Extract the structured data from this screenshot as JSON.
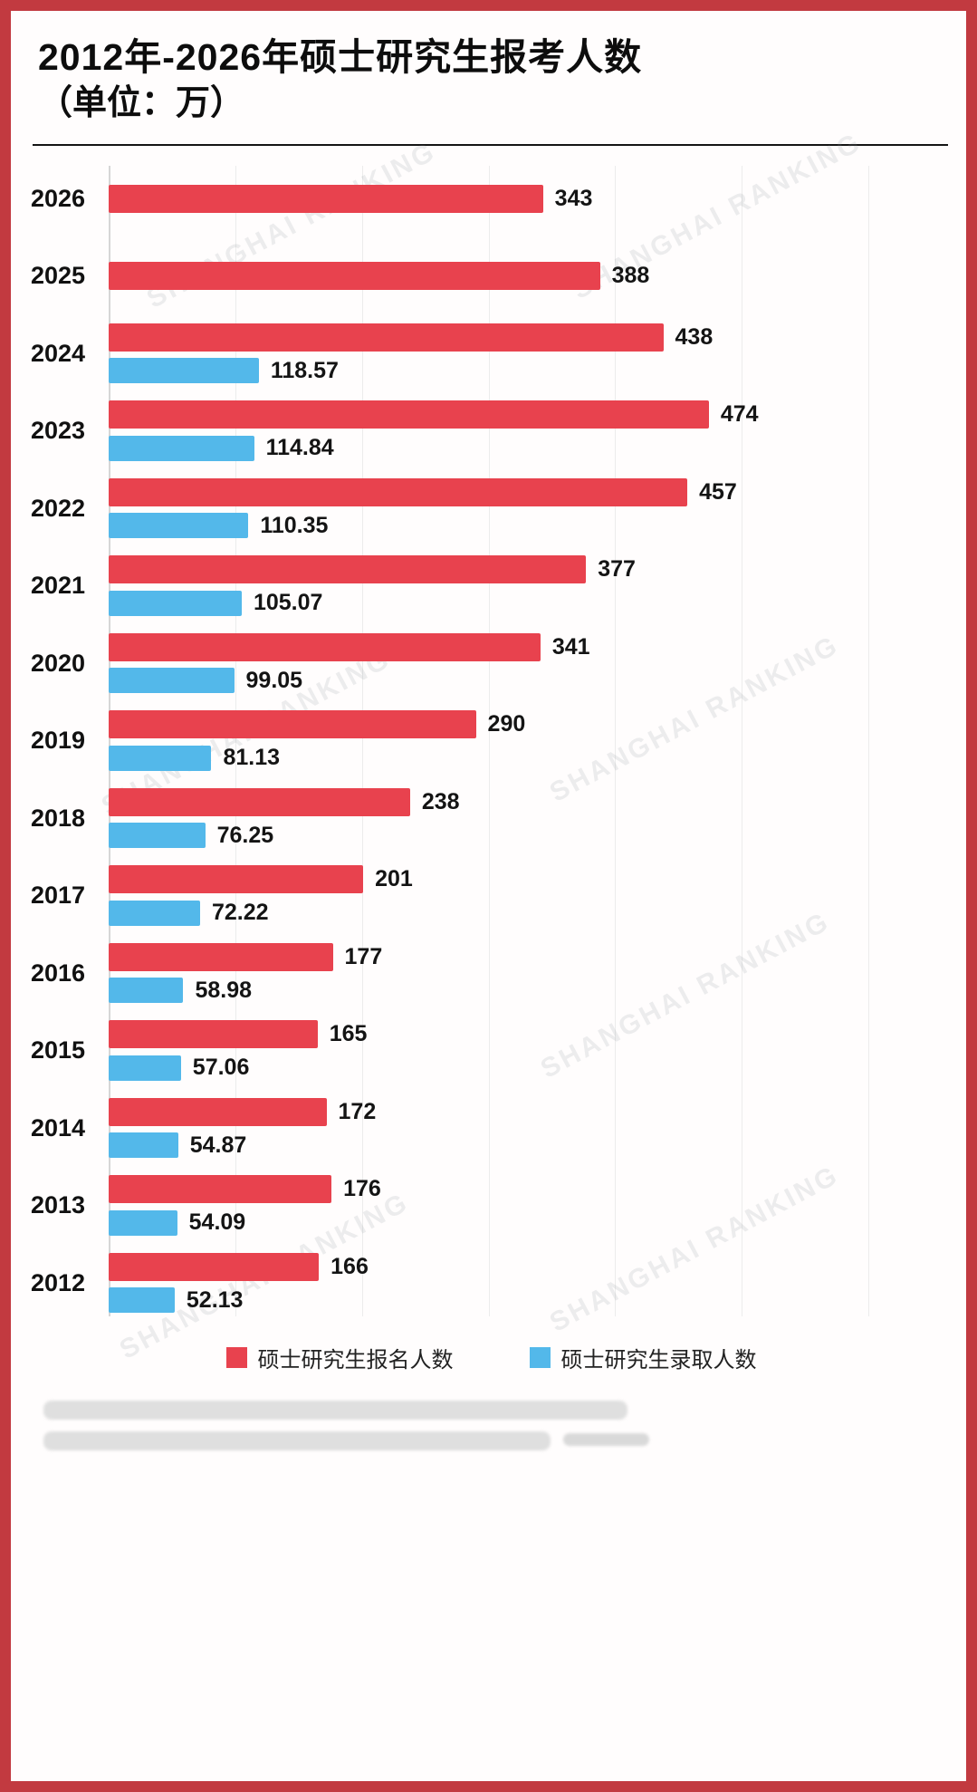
{
  "title": "2012年-2026年硕士研究生报考人数",
  "subtitle": "（单位：万）",
  "watermark": "SHANGHAI RANKING",
  "colors": {
    "applicants": "#e8424e",
    "admitted": "#53b8ea",
    "frame_border": "#c23a40"
  },
  "legend": [
    {
      "label": "硕士研究生报名人数",
      "color": "#e8424e"
    },
    {
      "label": "硕士研究生录取人数",
      "color": "#53b8ea"
    }
  ],
  "chart_data": {
    "type": "bar",
    "orientation": "horizontal",
    "title": "2012年-2026年硕士研究生报考人数（单位：万）",
    "categories": [
      "2026",
      "2025",
      "2024",
      "2023",
      "2022",
      "2021",
      "2020",
      "2019",
      "2018",
      "2017",
      "2016",
      "2015",
      "2014",
      "2013",
      "2012"
    ],
    "series": [
      {
        "name": "硕士研究生报名人数",
        "color": "#e8424e",
        "values": [
          343,
          388,
          438,
          474,
          457,
          377,
          341,
          290,
          238,
          201,
          177,
          165,
          172,
          176,
          166
        ],
        "labels": [
          "343",
          "388",
          "438",
          "474",
          "457",
          "377",
          "341",
          "290",
          "238",
          "201",
          "177",
          "165",
          "172",
          "176",
          "166"
        ]
      },
      {
        "name": "硕士研究生录取人数",
        "color": "#53b8ea",
        "values": [
          null,
          null,
          118.57,
          114.84,
          110.35,
          105.07,
          99.05,
          81.13,
          76.25,
          72.22,
          58.98,
          57.06,
          54.87,
          54.09,
          52.13
        ],
        "labels": [
          null,
          null,
          "118.57",
          "114.84",
          "110.35",
          "105.07",
          "99.05",
          "81.13",
          "76.25",
          "72.22",
          "58.98",
          "57.06",
          "54.87",
          "54.09",
          "52.13"
        ]
      }
    ],
    "xlim": [
      0,
      660
    ],
    "gridline_step": 100,
    "grid": true,
    "legend_position": "bottom"
  }
}
